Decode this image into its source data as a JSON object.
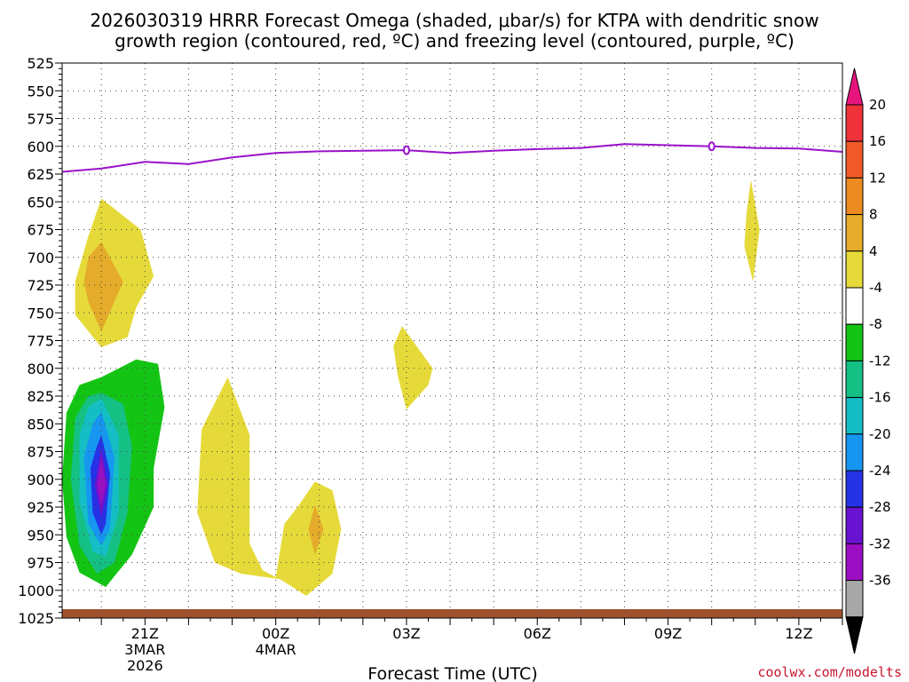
{
  "chart_data": {
    "type": "heatmap",
    "title_line1": "2026030319 HRRR Forecast Omega (shaded, μbar/s) for KTPA with dendritic snow",
    "title_line2": "growth region (contoured, red, ºC) and freezing level (contoured, purple, ºC)",
    "xlabel": "Forecast Time (UTC)",
    "credit": "coolwx.com/modelts",
    "x_range_hours": [
      -1.9,
      16
    ],
    "y_range_hpa": [
      525,
      1025
    ],
    "y_ticks": [
      525,
      550,
      575,
      600,
      625,
      650,
      675,
      700,
      725,
      750,
      775,
      800,
      825,
      850,
      875,
      900,
      925,
      950,
      975,
      1000,
      1025
    ],
    "x_ticks": [
      {
        "hour": 0,
        "lines": [
          "21Z",
          "3MAR",
          "2026"
        ]
      },
      {
        "hour": 3,
        "lines": [
          "00Z",
          "4MAR"
        ]
      },
      {
        "hour": 6,
        "lines": [
          "03Z"
        ]
      },
      {
        "hour": 9,
        "lines": [
          "06Z"
        ]
      },
      {
        "hour": 12,
        "lines": [
          "09Z"
        ]
      },
      {
        "hour": 15,
        "lines": [
          "12Z"
        ]
      }
    ],
    "colorbar": {
      "ticks": [
        "20",
        "16",
        "12",
        "8",
        "4",
        "-4",
        "-8",
        "-12",
        "-16",
        "-20",
        "-24",
        "-28",
        "-32",
        "-36"
      ],
      "colors": [
        "#e8147e",
        "#f0323a",
        "#f05a28",
        "#ee8a22",
        "#e4ac2a",
        "#e6da3a",
        "#ffffff",
        "#14c414",
        "#14c084",
        "#14bec4",
        "#1696f0",
        "#2632e6",
        "#6a12d2",
        "#9c0ec4",
        "#a8a8a8",
        "#000000"
      ]
    },
    "freezing_level": {
      "color": "#9a12c8",
      "hours": [
        -1.9,
        -1,
        0,
        1,
        2,
        3,
        4,
        5,
        6,
        7,
        8,
        9,
        10,
        11,
        12,
        13,
        14,
        15,
        16
      ],
      "hpa": [
        623,
        620,
        614,
        616,
        610,
        606,
        604.5,
        604,
        603.5,
        606,
        604,
        602.5,
        601.5,
        598,
        599,
        600,
        601.5,
        602,
        605
      ],
      "label": "0",
      "label_hours": [
        6,
        13
      ]
    },
    "omega_regions": [
      {
        "category": "4",
        "color": "#e6da3a",
        "pts": [
          [
            -1,
            647
          ],
          [
            -0.1,
            675
          ],
          [
            0.2,
            717
          ],
          [
            -0.2,
            745
          ],
          [
            -0.4,
            772
          ],
          [
            -1,
            781
          ],
          [
            -1.6,
            752
          ],
          [
            -1.6,
            722
          ],
          [
            -1.3,
            681
          ]
        ]
      },
      {
        "category": "8",
        "color": "#e4ac2a",
        "pts": [
          [
            -1,
            686
          ],
          [
            -0.5,
            722
          ],
          [
            -1,
            767
          ],
          [
            -1.3,
            740
          ],
          [
            -1.4,
            722
          ],
          [
            -1.3,
            700
          ]
        ]
      },
      {
        "category": "-4",
        "color": "#14c414",
        "pts": [
          [
            -1,
            808
          ],
          [
            -0.2,
            792
          ],
          [
            0.3,
            796
          ],
          [
            0.45,
            835
          ],
          [
            0.2,
            890
          ],
          [
            0.2,
            925
          ],
          [
            -0.3,
            968
          ],
          [
            -0.9,
            997
          ],
          [
            -1.5,
            984
          ],
          [
            -1.8,
            952
          ],
          [
            -1.9,
            900
          ],
          [
            -1.8,
            840
          ],
          [
            -1.5,
            815
          ]
        ]
      },
      {
        "category": "-8",
        "color": "#14c084",
        "pts": [
          [
            -1,
            822
          ],
          [
            -0.5,
            832
          ],
          [
            -0.3,
            870
          ],
          [
            -0.4,
            930
          ],
          [
            -0.7,
            975
          ],
          [
            -1.1,
            985
          ],
          [
            -1.5,
            960
          ],
          [
            -1.7,
            900
          ],
          [
            -1.6,
            845
          ],
          [
            -1.3,
            825
          ]
        ]
      },
      {
        "category": "-12",
        "color": "#14bec4",
        "pts": [
          [
            -1,
            827
          ],
          [
            -0.6,
            860
          ],
          [
            -0.6,
            930
          ],
          [
            -0.9,
            970
          ],
          [
            -1.2,
            965
          ],
          [
            -1.5,
            920
          ],
          [
            -1.5,
            860
          ],
          [
            -1.3,
            835
          ]
        ]
      },
      {
        "category": "-16",
        "color": "#1696f0",
        "pts": [
          [
            -1,
            839
          ],
          [
            -0.7,
            880
          ],
          [
            -0.8,
            945
          ],
          [
            -1.0,
            960
          ],
          [
            -1.3,
            940
          ],
          [
            -1.4,
            880
          ],
          [
            -1.2,
            850
          ]
        ]
      },
      {
        "category": "-20",
        "color": "#2632e6",
        "pts": [
          [
            -1,
            860
          ],
          [
            -0.8,
            895
          ],
          [
            -0.9,
            940
          ],
          [
            -1.0,
            950
          ],
          [
            -1.2,
            930
          ],
          [
            -1.25,
            890
          ],
          [
            -1.1,
            870
          ]
        ]
      },
      {
        "category": "-24",
        "color": "#6a12d2",
        "pts": [
          [
            -1,
            872
          ],
          [
            -0.85,
            905
          ],
          [
            -1.0,
            935
          ],
          [
            -1.15,
            905
          ]
        ]
      },
      {
        "category": "-28",
        "color": "#9c0ec4",
        "pts": [
          [
            -1,
            880
          ],
          [
            -0.9,
            905
          ],
          [
            -1.0,
            925
          ],
          [
            -1.1,
            905
          ]
        ]
      },
      {
        "category": "4",
        "color": "#e6da3a",
        "pts": [
          [
            1.9,
            808
          ],
          [
            2.4,
            860
          ],
          [
            2.4,
            958
          ],
          [
            2.7,
            982
          ],
          [
            3,
            988
          ],
          [
            3.2,
            940
          ],
          [
            3.5,
            925
          ],
          [
            3.9,
            902
          ],
          [
            4.3,
            910
          ],
          [
            4.5,
            945
          ],
          [
            4.3,
            985
          ],
          [
            3.7,
            1005
          ],
          [
            3.1,
            990
          ],
          [
            2.2,
            985
          ],
          [
            1.6,
            975
          ],
          [
            1.2,
            930
          ],
          [
            1.3,
            855
          ]
        ]
      },
      {
        "category": "8",
        "color": "#e4ac2a",
        "pts": [
          [
            3.9,
            923
          ],
          [
            4.1,
            945
          ],
          [
            3.9,
            968
          ],
          [
            3.75,
            945
          ]
        ]
      },
      {
        "category": "4",
        "color": "#e6da3a",
        "pts": [
          [
            5.9,
            762
          ],
          [
            6.6,
            800
          ],
          [
            6.5,
            815
          ],
          [
            6.0,
            837
          ],
          [
            5.8,
            807
          ],
          [
            5.7,
            780
          ]
        ]
      },
      {
        "category": "4",
        "color": "#e6da3a",
        "pts": [
          [
            13.9,
            630
          ],
          [
            14.1,
            675
          ],
          [
            13.95,
            722
          ],
          [
            13.75,
            690
          ],
          [
            13.8,
            660
          ]
        ]
      }
    ],
    "ground": {
      "color": "#a0522d",
      "hpa": 1017
    }
  }
}
